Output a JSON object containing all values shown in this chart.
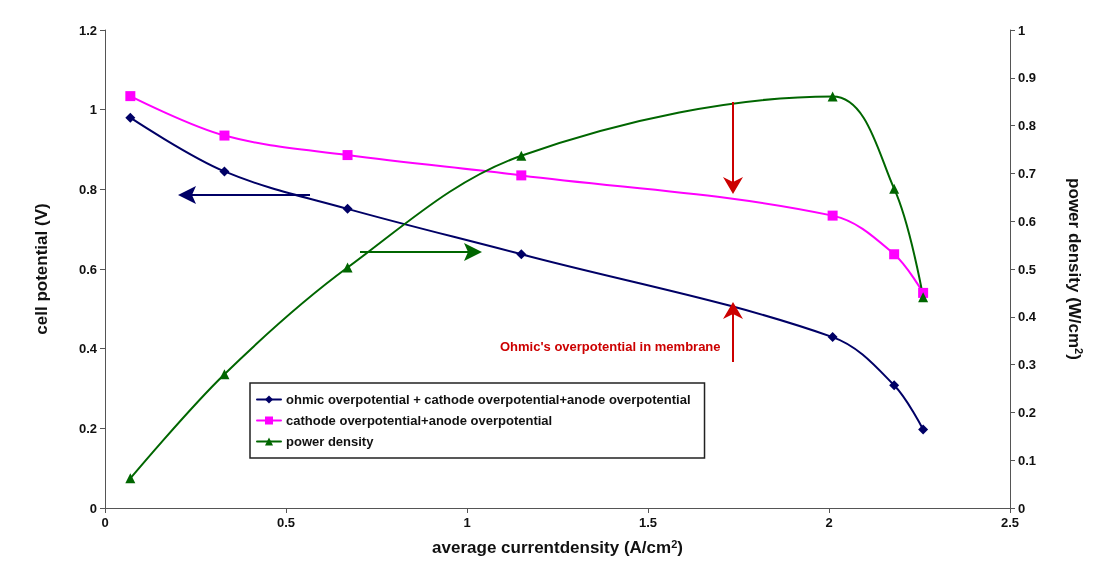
{
  "chart_data": {
    "type": "line",
    "xlabel": "average currentdensity (A/cm$^{2}$)",
    "ylabel": "cell potential (V)",
    "y2label": "power density (W/cm$^{2}$)",
    "x": [
      0.07,
      0.33,
      0.67,
      1.15,
      2.01,
      2.18,
      2.26
    ],
    "series": [
      {
        "name": "ohmic overpotential + cathode overpotential+anode overpotential",
        "color": "#000066",
        "marker": "diamond",
        "values": [
          0.98,
          0.845,
          0.751,
          0.637,
          0.429,
          0.308,
          0.197
        ]
      },
      {
        "name": "cathode overpotential+anode overpotential",
        "color": "#ff00ff",
        "marker": "square",
        "values": [
          1.034,
          0.935,
          0.886,
          0.835,
          0.734,
          0.637,
          0.54
        ]
      },
      {
        "name": "power density",
        "color": "#006600",
        "marker": "triangle",
        "axis": "y2",
        "values": [
          0.062,
          0.28,
          0.503,
          0.737,
          0.861,
          0.668,
          0.441
        ]
      }
    ],
    "xlim": [
      0,
      2.5
    ],
    "xticks": [
      0,
      0.5,
      1,
      1.5,
      2,
      2.5
    ],
    "ylim": [
      0,
      1.2
    ],
    "yticks": [
      0,
      0.2,
      0.4,
      0.6,
      0.8,
      1,
      1.2
    ],
    "y2lim": [
      0,
      1
    ],
    "y2ticks": [
      0,
      0.1,
      0.2,
      0.3,
      0.4,
      0.5,
      0.6,
      0.7,
      0.8,
      0.9,
      1
    ],
    "annotations": [
      "Ohmic's overpotential in membrane"
    ],
    "grid": false,
    "legend": "bottom",
    "line_style": "solid"
  }
}
